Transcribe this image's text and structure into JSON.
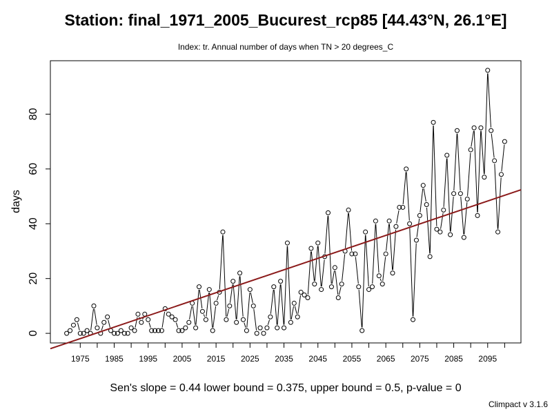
{
  "chart_data": {
    "type": "line",
    "title": "Station: final_1971_2005_Bucurest_rcp85 [44.43°N, 26.1°E]",
    "subtitle": "Index: tr. Annual number of days when TN > 20 degrees_C",
    "ylabel": "days",
    "xlabel": "",
    "xlim": [
      1966.2,
      2104.8
    ],
    "ylim": [
      -3.5,
      99.5
    ],
    "x_ticks": [
      1975,
      1980,
      1985,
      1990,
      1995,
      2000,
      2005,
      2010,
      2015,
      2020,
      2025,
      2030,
      2035,
      2040,
      2045,
      2050,
      2055,
      2060,
      2065,
      2070,
      2075,
      2080,
      2085,
      2090,
      2095,
      2100
    ],
    "x_tick_labels": [
      "1975",
      "",
      "1985",
      "",
      "1995",
      "",
      "2005",
      "",
      "2015",
      "",
      "2025",
      "",
      "2035",
      "",
      "2045",
      "",
      "2055",
      "",
      "2065",
      "",
      "2075",
      "",
      "2085",
      "",
      "2095",
      ""
    ],
    "y_ticks": [
      0,
      20,
      40,
      60,
      80
    ],
    "y_tick_labels": [
      "0",
      "20",
      "40",
      "60",
      "80"
    ],
    "grid": false,
    "x": [
      1971,
      1972,
      1973,
      1974,
      1975,
      1976,
      1977,
      1978,
      1979,
      1980,
      1981,
      1982,
      1983,
      1984,
      1985,
      1986,
      1987,
      1988,
      1989,
      1990,
      1991,
      1992,
      1993,
      1994,
      1995,
      1996,
      1997,
      1998,
      1999,
      2000,
      2001,
      2002,
      2003,
      2004,
      2005,
      2006,
      2007,
      2008,
      2009,
      2010,
      2011,
      2012,
      2013,
      2014,
      2015,
      2016,
      2017,
      2018,
      2019,
      2020,
      2021,
      2022,
      2023,
      2024,
      2025,
      2026,
      2027,
      2028,
      2029,
      2030,
      2031,
      2032,
      2033,
      2034,
      2035,
      2036,
      2037,
      2038,
      2039,
      2040,
      2041,
      2042,
      2043,
      2044,
      2045,
      2046,
      2047,
      2048,
      2049,
      2050,
      2051,
      2052,
      2053,
      2054,
      2055,
      2056,
      2057,
      2058,
      2059,
      2060,
      2061,
      2062,
      2063,
      2064,
      2065,
      2066,
      2067,
      2068,
      2069,
      2070,
      2071,
      2072,
      2073,
      2074,
      2075,
      2076,
      2077,
      2078,
      2079,
      2080,
      2081,
      2082,
      2083,
      2084,
      2085,
      2086,
      2087,
      2088,
      2089,
      2090,
      2091,
      2092,
      2093,
      2094,
      2095,
      2096,
      2097,
      2098,
      2099,
      2100
    ],
    "series": [
      {
        "values": [
          0,
          1,
          3,
          5,
          0,
          0,
          1,
          0,
          10,
          2,
          0,
          4,
          6,
          1,
          0,
          0,
          1,
          0,
          0,
          2,
          1,
          7,
          4,
          7,
          5,
          1,
          1,
          1,
          1,
          9,
          7,
          6,
          5,
          1,
          1,
          2,
          4,
          11,
          2,
          17,
          8,
          5,
          16,
          1,
          11,
          15,
          37,
          5,
          10,
          19,
          4,
          22,
          5,
          1,
          16,
          10,
          0,
          2,
          0,
          2,
          6,
          17,
          2,
          19,
          2,
          33,
          4,
          11,
          6,
          15,
          14,
          13,
          31,
          18,
          33,
          16,
          28,
          44,
          17,
          24,
          13,
          18,
          30,
          45,
          29,
          29,
          17,
          1,
          37,
          16,
          17,
          41,
          21,
          18,
          29,
          41,
          22,
          39,
          46,
          46,
          60,
          40,
          5,
          34,
          43,
          54,
          47,
          28,
          77,
          38,
          37,
          45,
          65,
          36,
          51,
          74,
          51,
          35,
          49,
          67,
          75,
          43,
          75,
          57,
          96,
          74,
          63,
          37,
          58,
          70
        ]
      }
    ],
    "trend": {
      "x": [
        1966.2,
        2104.8
      ],
      "y": [
        -5.6,
        52.4
      ]
    },
    "colors": {
      "series": "#000000",
      "trend": "#8b1a1a"
    }
  },
  "footer": {
    "stats": "Sen's slope = 0.44   lower bound = 0.375,   upper bound = 0.5,   p-value = 0",
    "version": "Climpact v 3.1.6"
  }
}
